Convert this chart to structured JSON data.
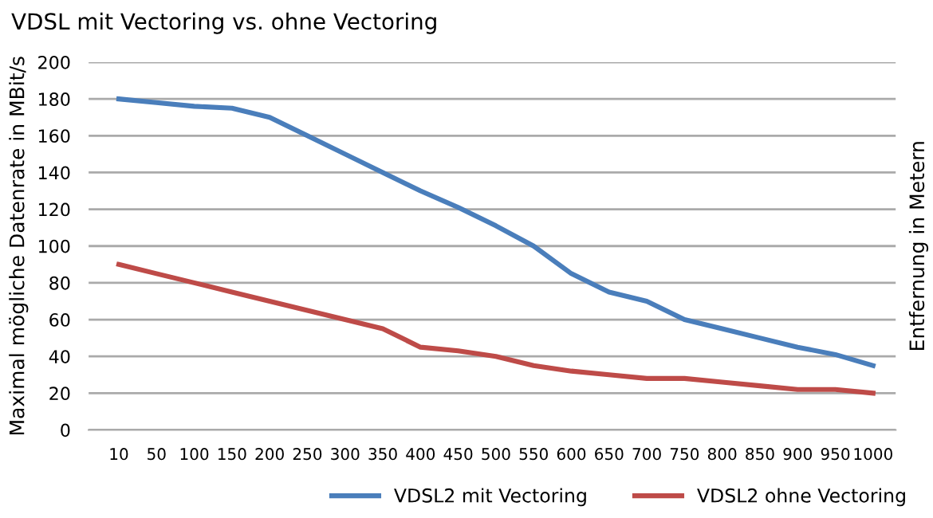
{
  "chart_data": {
    "type": "line",
    "title": "VDSL mit Vectoring vs. ohne Vectoring",
    "y2label": "Entfernung in Metern",
    "ylabel": "Maximal mögliche Datenrate in MBit/s",
    "categories": [
      "10",
      "50",
      "100",
      "150",
      "200",
      "250",
      "300",
      "350",
      "400",
      "450",
      "500",
      "550",
      "600",
      "650",
      "700",
      "750",
      "800",
      "850",
      "900",
      "950",
      "1000"
    ],
    "series": [
      {
        "name": "VDSL2 mit Vectoring",
        "color": "#4a7ebb",
        "values": [
          180,
          178,
          176,
          175,
          170,
          160,
          150,
          140,
          130,
          121,
          111,
          100,
          85,
          75,
          70,
          60,
          55,
          50,
          45,
          41,
          35
        ]
      },
      {
        "name": "VDSL2 ohne Vectoring",
        "color": "#be4b48",
        "values": [
          90,
          85,
          80,
          75,
          70,
          65,
          60,
          55,
          45,
          43,
          40,
          35,
          32,
          30,
          28,
          28,
          26,
          24,
          22,
          22,
          20
        ]
      }
    ],
    "ylim": [
      0,
      200
    ],
    "yticks": [
      0,
      20,
      40,
      60,
      80,
      100,
      120,
      140,
      160,
      180,
      200
    ],
    "grid": "y",
    "legend": "bottom right",
    "marker": "none",
    "line_style": "solid"
  }
}
